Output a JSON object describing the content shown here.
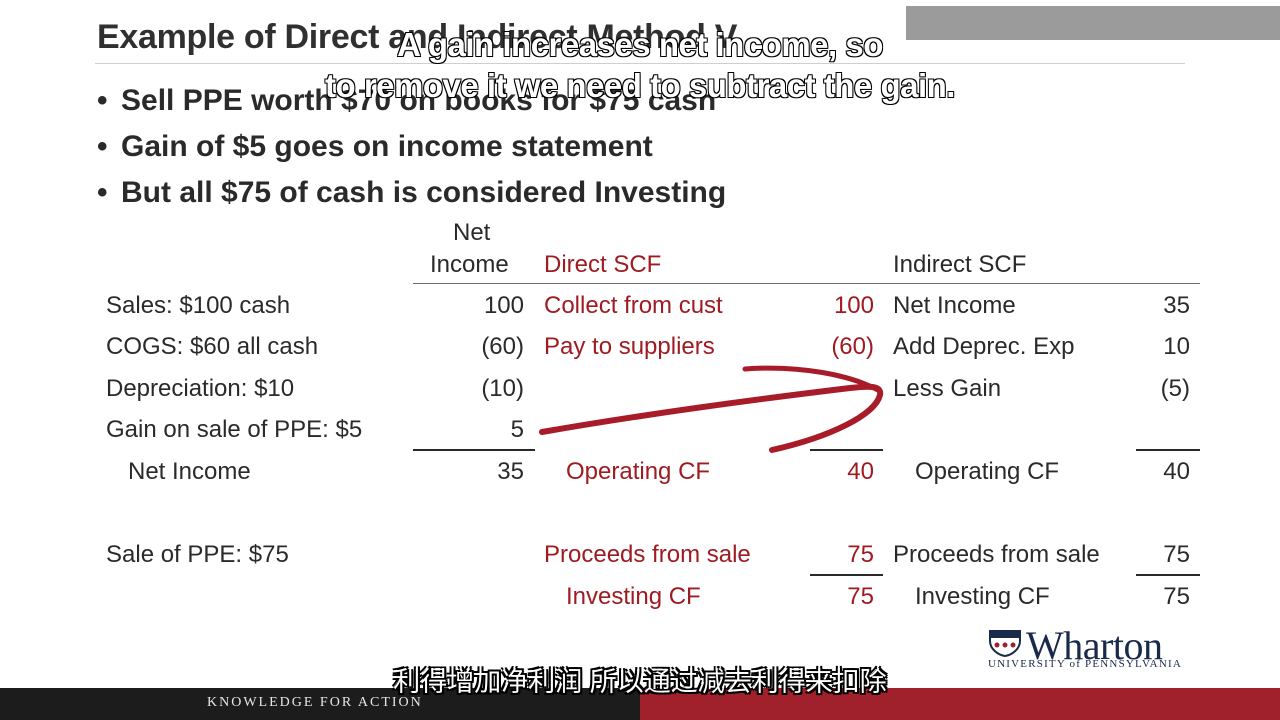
{
  "slide": {
    "title": "Example of Direct and Indirect Method V",
    "bullets": [
      "Sell PPE worth $70 on books for $75 cash",
      "Gain of $5 goes on income statement",
      "But all $75 of cash is considered Investing"
    ]
  },
  "table": {
    "headers": {
      "net_income_1": "Net",
      "net_income_2": "Income",
      "direct": "Direct SCF",
      "indirect": "Indirect SCF"
    },
    "rows": [
      {
        "label": "Sales: $100 cash",
        "ni": "100",
        "direct_label": "Collect from cust",
        "direct_val": "100",
        "indirect_label": "Net Income",
        "indirect_val": "35"
      },
      {
        "label": "COGS: $60 all cash",
        "ni": "(60)",
        "direct_label": "Pay to suppliers",
        "direct_val": "(60)",
        "indirect_label": "Add Deprec. Exp",
        "indirect_val": "10"
      },
      {
        "label": "Depreciation: $10",
        "ni": "(10)",
        "direct_label": "",
        "direct_val": "",
        "indirect_label": "Less Gain",
        "indirect_val": "(5)"
      },
      {
        "label": "Gain on sale of PPE: $5",
        "ni": "5",
        "direct_label": "",
        "direct_val": "",
        "indirect_label": "",
        "indirect_val": ""
      }
    ],
    "net_income_row": {
      "label": "Net Income",
      "ni": "35",
      "direct_label": "Operating CF",
      "direct_val": "40",
      "indirect_label": "Operating CF",
      "indirect_val": "40"
    },
    "sale_row": {
      "label": "Sale of PPE: $75",
      "direct_label": "Proceeds from sale",
      "direct_val": "75",
      "indirect_label": "Proceeds from sale",
      "indirect_val": "75"
    },
    "investing_row": {
      "direct_label": "Investing CF",
      "direct_val": "75",
      "indirect_label": "Investing CF",
      "indirect_val": "75"
    }
  },
  "subtitles": {
    "en_line1": "A gain increases net income, so",
    "en_line2": "to remove it we need to subtract the gain.",
    "zh": "利得增加净利润 所以通过减去利得来扣除"
  },
  "footer": {
    "tagline": "KNOWLEDGE FOR ACTION"
  },
  "logo": {
    "name": "Wharton",
    "sub": "UNIVERSITY of PENNSYLVANIA"
  },
  "colors": {
    "accent_red": "#9e1b22",
    "footer_dark": "#1c1c1c",
    "footer_red": "#a0202b"
  }
}
